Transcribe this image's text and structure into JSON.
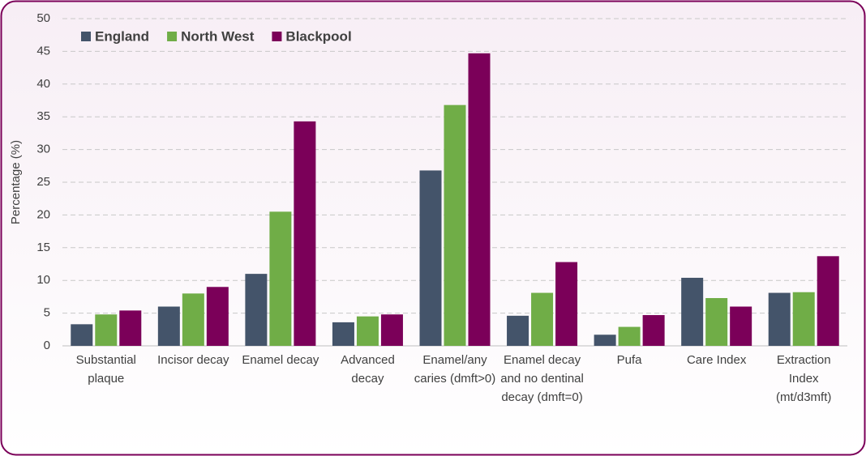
{
  "chart_data": {
    "type": "bar",
    "y_label": "Percentage (%)",
    "categories": [
      "Substantial plaque",
      "Incisor decay",
      "Enamel decay",
      "Advanced decay",
      "Enamel/any caries (dmft>0)",
      "Enamel decay and no dentinal decay (dmft=0)",
      "Pufa",
      "Care Index",
      "Extraction Index (mt/d3mft)"
    ],
    "series": [
      {
        "name": "England",
        "color": "#44546a",
        "values": [
          3.3,
          6.0,
          11.0,
          3.6,
          26.8,
          4.6,
          1.7,
          10.4,
          8.1
        ]
      },
      {
        "name": "North West",
        "color": "#70ad47",
        "values": [
          4.8,
          8.0,
          20.5,
          4.5,
          36.8,
          8.1,
          2.9,
          7.3,
          8.2
        ]
      },
      {
        "name": "Blackpool",
        "color": "#7b0059",
        "values": [
          5.4,
          9.0,
          34.3,
          4.8,
          44.7,
          12.8,
          4.7,
          6.0,
          13.7
        ]
      }
    ],
    "ylim": [
      0,
      50
    ],
    "yticks": [
      0,
      5,
      10,
      15,
      20,
      25,
      30,
      35,
      40,
      45,
      50
    ],
    "grid": true,
    "legend": "top-left"
  }
}
